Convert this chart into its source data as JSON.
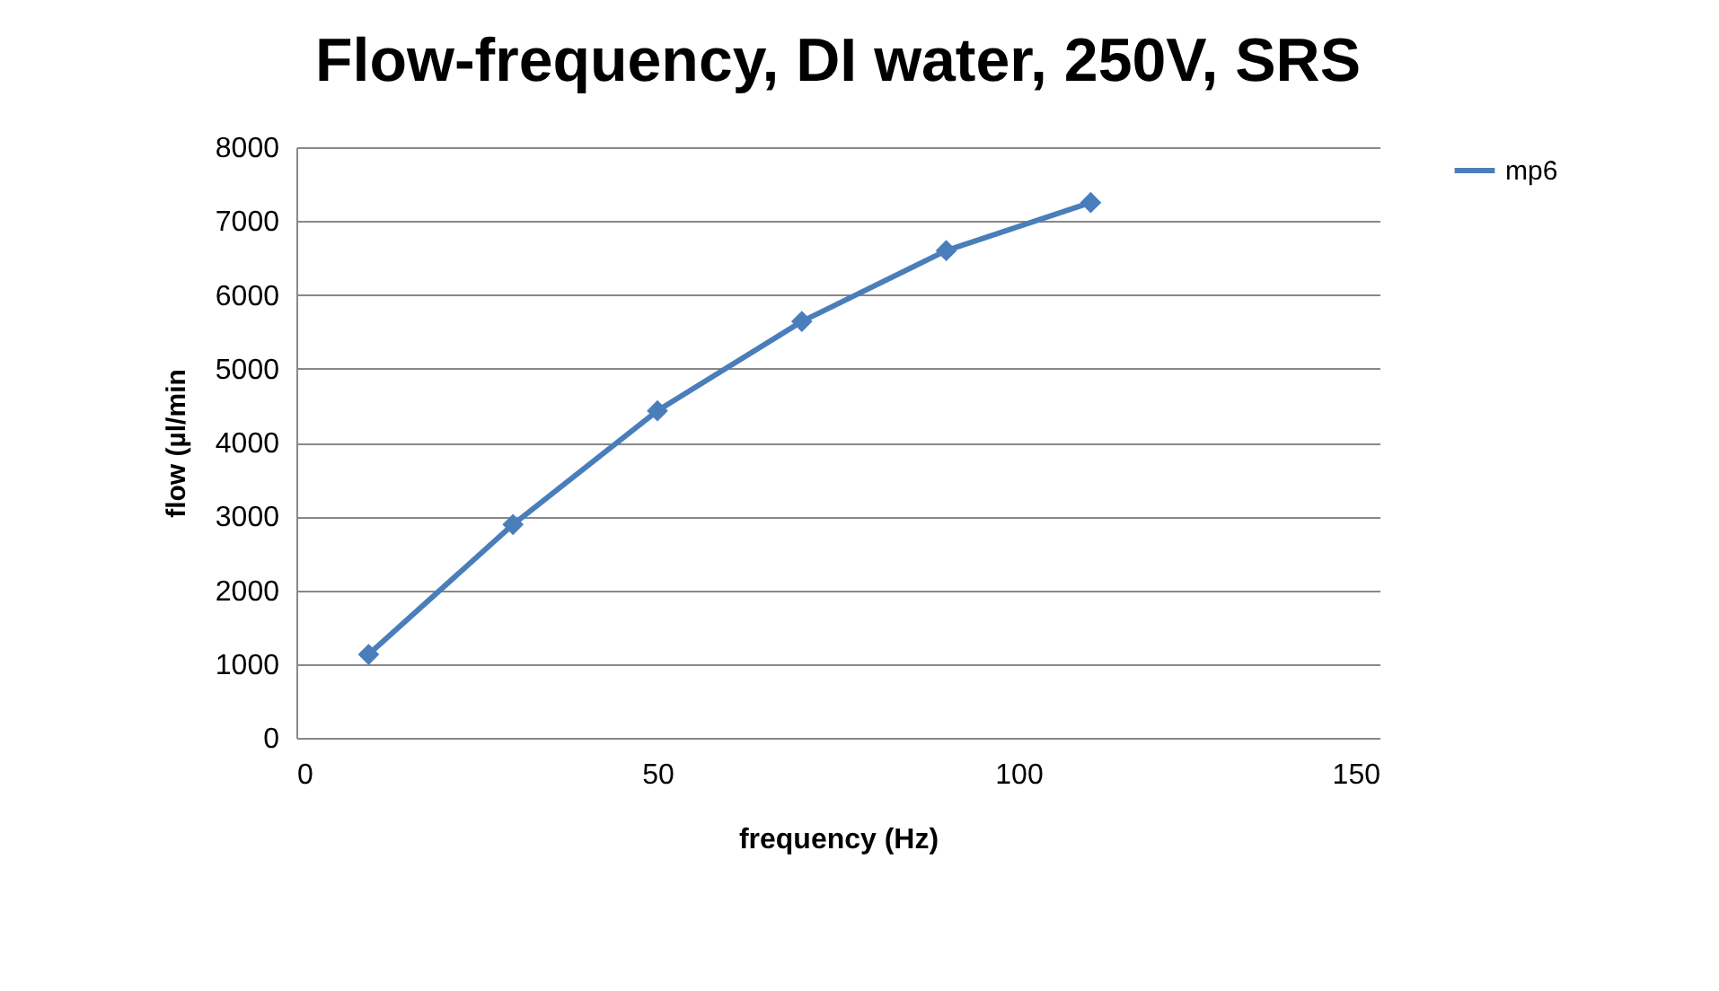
{
  "chart_data": {
    "type": "line",
    "title": "Flow-frequency, DI water, 250V, SRS",
    "xlabel": "frequency (Hz)",
    "ylabel": "flow (µl/min",
    "x": [
      10,
      30,
      50,
      70,
      90,
      110
    ],
    "series": [
      {
        "name": "mp6",
        "color": "#4a7ebb",
        "values": [
          1130,
          2890,
          4430,
          5640,
          6600,
          7250
        ]
      }
    ],
    "xlim": [
      0,
      150
    ],
    "xticks": [
      0,
      50,
      100,
      150
    ],
    "ylim": [
      0,
      8000
    ],
    "yticks": [
      0,
      1000,
      2000,
      3000,
      4000,
      5000,
      6000,
      7000,
      8000
    ],
    "grid": "y",
    "legend": "right",
    "marker": "diamond",
    "line_style": "solid"
  }
}
